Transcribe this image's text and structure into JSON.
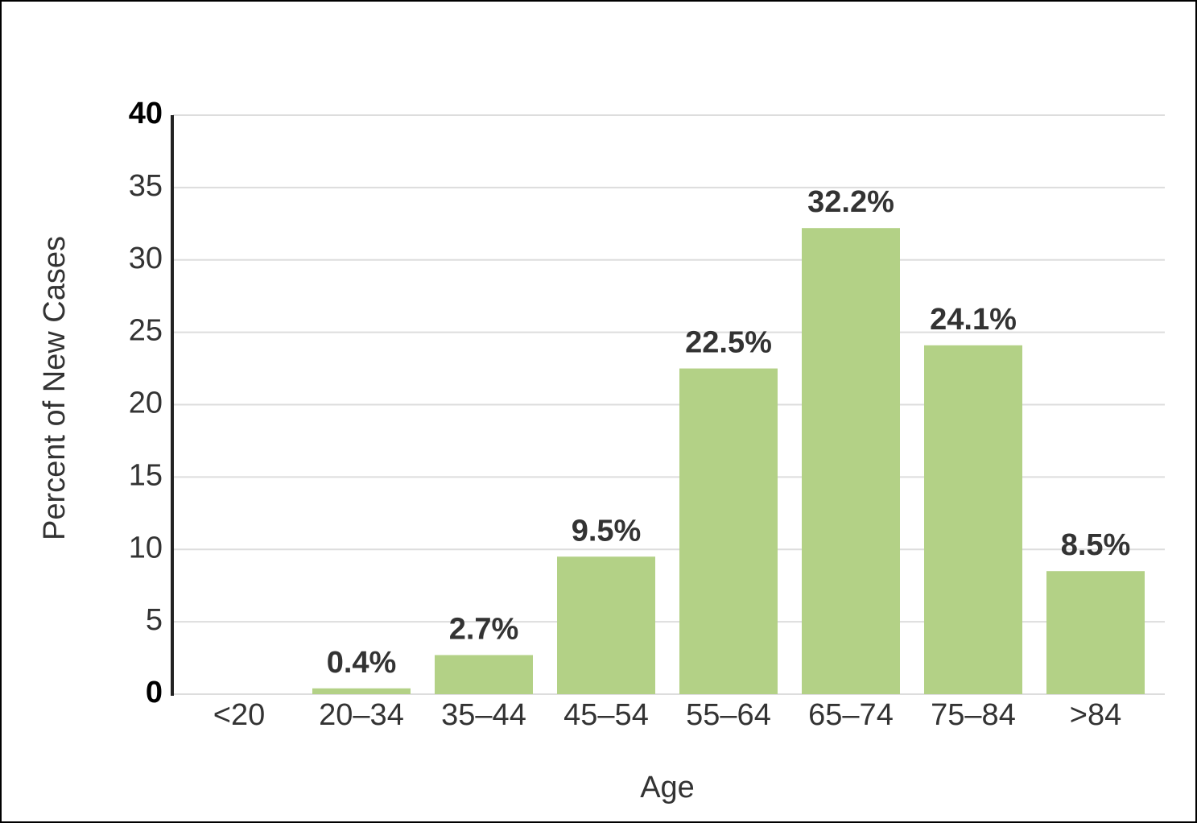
{
  "chart_data": {
    "type": "bar",
    "x_label": "Age",
    "y_label": "Percent of New Cases",
    "categories": [
      "<20",
      "20–34",
      "35–44",
      "45–54",
      "55–64",
      "65–74",
      "75–84",
      ">84"
    ],
    "values": [
      null,
      0.4,
      2.7,
      9.5,
      22.5,
      32.2,
      24.1,
      8.5
    ],
    "value_labels": [
      null,
      "0.4%",
      "2.7%",
      "9.5%",
      "22.5%",
      "32.2%",
      "24.1%",
      "8.5%"
    ],
    "color": "#b3d186",
    "ylim": [
      0,
      40
    ],
    "yticks": [
      0,
      5,
      10,
      15,
      20,
      25,
      30,
      35,
      40
    ],
    "grid": true
  }
}
